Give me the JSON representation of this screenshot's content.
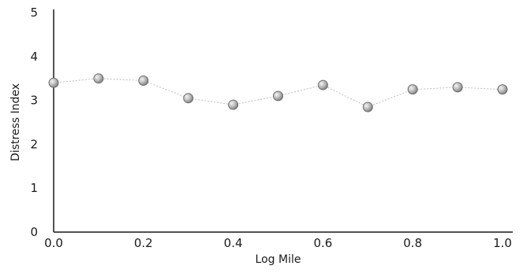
{
  "chart_data": {
    "type": "line",
    "title": "",
    "xlabel": "Log Mile",
    "ylabel": "Distress Index",
    "xlim": [
      0,
      1
    ],
    "ylim": [
      0,
      5
    ],
    "x_ticks": [
      "0.0",
      "0.2",
      "0.4",
      "0.6",
      "0.8",
      "1.0"
    ],
    "y_ticks": [
      "0",
      "1",
      "2",
      "3",
      "4",
      "5"
    ],
    "grid": false,
    "legend": "none",
    "series": [
      {
        "x": [
          0.0,
          0.1,
          0.2,
          0.3,
          0.4,
          0.5,
          0.6,
          0.7,
          0.8,
          0.9,
          1.0
        ],
        "values": [
          3.4,
          3.5,
          3.45,
          3.05,
          2.9,
          3.1,
          3.35,
          2.85,
          3.25,
          3.3,
          3.25
        ],
        "color": "#bdbdbd",
        "marker_color": "#9a9a9a"
      }
    ]
  }
}
